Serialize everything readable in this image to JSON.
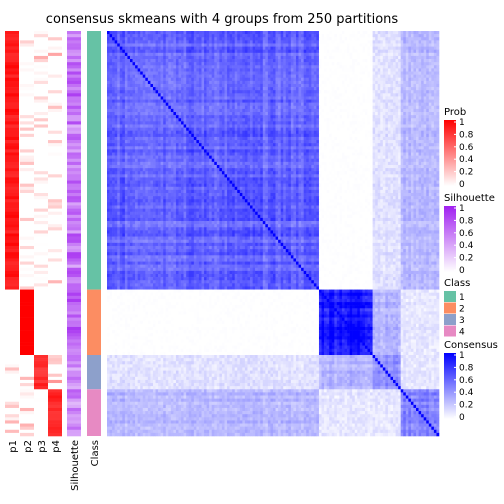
{
  "chart_data": {
    "type": "heatmap",
    "title": "consensus skmeans with 4 groups from 250 partitions",
    "row_order_classes": [
      1,
      2,
      3,
      4
    ],
    "group_sizes": [
      83,
      21,
      11,
      15
    ],
    "annotation_columns": [
      "p1",
      "p2",
      "p3",
      "p4",
      "Silhouette",
      "Class"
    ],
    "legends": [
      {
        "name": "Prob",
        "ticks": [
          "1",
          "0.8",
          "0.6",
          "0.4",
          "0.2",
          "0"
        ],
        "low_color": "#ffffff",
        "high_color": "#ff0000"
      },
      {
        "name": "Silhouette",
        "ticks": [
          "1",
          "0.8",
          "0.6",
          "0.4",
          "0.2",
          "0"
        ],
        "low_color": "#ffffff",
        "high_color": "#a020f0"
      },
      {
        "name": "Class",
        "items": [
          {
            "label": "1",
            "color": "#66c2a5"
          },
          {
            "label": "2",
            "color": "#fc8d62"
          },
          {
            "label": "3",
            "color": "#8da0cb"
          },
          {
            "label": "4",
            "color": "#e78ac3"
          }
        ]
      },
      {
        "name": "Consensus",
        "ticks": [
          "1",
          "0.8",
          "0.6",
          "0.4",
          "0.2",
          "0"
        ],
        "low_color": "#ffffff",
        "high_color": "#0000ff"
      }
    ],
    "consensus_within_group": [
      0.62,
      0.97,
      0.45,
      0.5
    ],
    "consensus_between": {
      "1-2": 0.0,
      "1-3": 0.12,
      "1-4": 0.28,
      "2-3": 0.3,
      "2-4": 0.1,
      "3-4": 0.1
    }
  }
}
